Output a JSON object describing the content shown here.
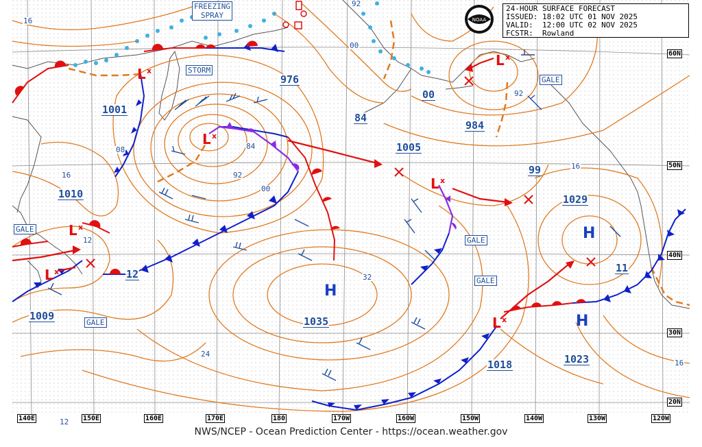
{
  "header": {
    "line1": "24-HOUR SURFACE FORECAST",
    "line2": "ISSUED: 18:02 UTC 01 NOV 2025",
    "line3": "VALID:  12:00 UTC 02 NOV 2025",
    "line4": "FCSTR:  Rowland"
  },
  "logo_text": "NOAA",
  "footer": "NWS/NCEP - Ocean Prediction Center - https://ocean.weather.gov",
  "boxed_labels": {
    "freezing_spray": "FREEZING\nSPRAY",
    "storm": "STORM",
    "gale_alaska": "GALE",
    "gale_west": "GALE",
    "gale_sw": "GALE",
    "gale_center1": "GALE",
    "gale_center2": "GALE"
  },
  "pressure_labels": {
    "p976": "976",
    "p1001": "1001",
    "p1010": "1010",
    "p1009": "1009",
    "p1005": "1005",
    "p984": "984",
    "p1029": "1029",
    "p1035": "1035",
    "p1018": "1018",
    "p1023": "1023",
    "p99": "99",
    "p84": "84",
    "p00": "00",
    "p12a": "12",
    "p11": "11"
  },
  "isobar_labels": {
    "i16a": "16",
    "i08": "08",
    "i16b": "16",
    "i12": "12",
    "i84": "84",
    "i92": "92",
    "i00": "00",
    "i32": "32",
    "i24": "24",
    "i12b": "12",
    "i92b": "92",
    "i00b": "00",
    "i16c": "16",
    "i16d": "16",
    "i92c": "92"
  },
  "systems": {
    "H_central": "H",
    "H_east": "H",
    "H_se": "H"
  },
  "longitude_labels": [
    "140E",
    "150E",
    "160E",
    "170E",
    "180",
    "170W",
    "160W",
    "150W",
    "140W",
    "130W",
    "120W"
  ],
  "latitude_labels": [
    "60N",
    "50N",
    "40N",
    "30N",
    "20N"
  ],
  "colors": {
    "isobar": "#e07a20",
    "front_cold": "#1020c8",
    "front_warm": "#e01010",
    "front_occluded": "#8a2be2",
    "label_blue": "#1f4e9a",
    "coast": "#555555",
    "grid": "#777777",
    "ice": "#40b0e0"
  }
}
